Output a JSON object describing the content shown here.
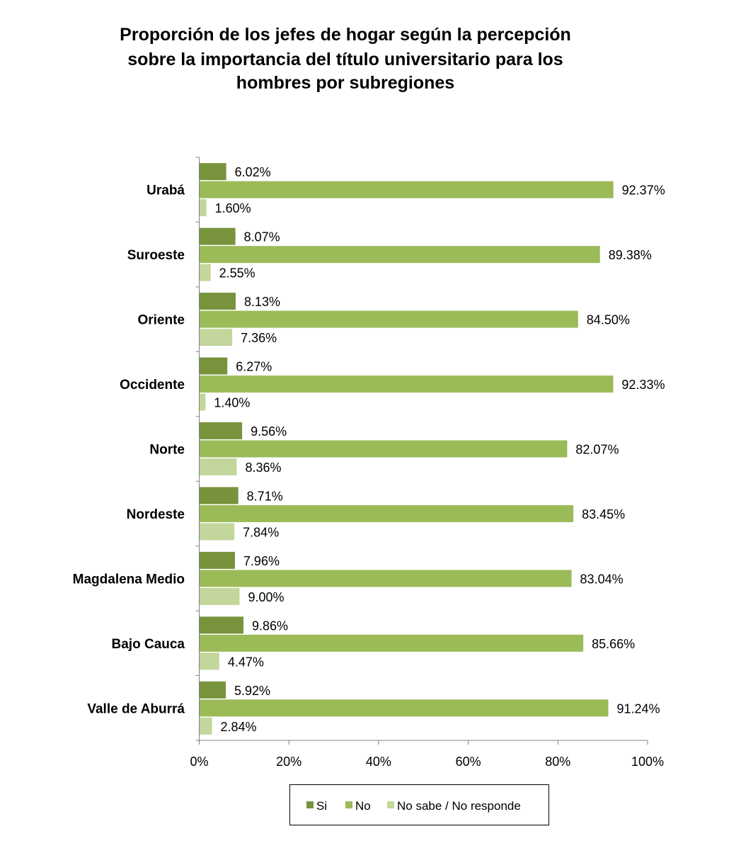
{
  "chart_data": {
    "type": "bar",
    "orientation": "horizontal",
    "stacked": false,
    "title_lines": [
      "Proporción de los jefes de hogar según la percepción",
      "sobre la importancia del título universitario para los",
      "hombres por subregiones"
    ],
    "categories": [
      "Urabá",
      "Suroeste",
      "Oriente",
      "Occidente",
      "Norte",
      "Nordeste",
      "Magdalena Medio",
      "Bajo Cauca",
      "Valle de Aburrá"
    ],
    "series": [
      {
        "name": "Si",
        "color": "#77933c",
        "values": [
          6.02,
          8.07,
          8.13,
          6.27,
          9.56,
          8.71,
          7.96,
          9.86,
          5.92
        ],
        "labels": [
          "6.02%",
          "8.07%",
          "8.13%",
          "6.27%",
          "9.56%",
          "8.71%",
          "7.96%",
          "9.86%",
          "5.92%"
        ]
      },
      {
        "name": "No",
        "color": "#9bbb59",
        "values": [
          92.37,
          89.38,
          84.5,
          92.33,
          82.07,
          83.45,
          83.04,
          85.66,
          91.24
        ],
        "labels": [
          "92.37%",
          "89.38%",
          "84.50%",
          "92.33%",
          "82.07%",
          "83.45%",
          "83.04%",
          "85.66%",
          "91.24%"
        ]
      },
      {
        "name": "No sabe / No responde",
        "color": "#c3d69b",
        "values": [
          1.6,
          2.55,
          7.36,
          1.4,
          8.36,
          7.84,
          9.0,
          4.47,
          2.84
        ],
        "labels": [
          "1.60%",
          "2.55%",
          "7.36%",
          "1.40%",
          "8.36%",
          "7.84%",
          "9.00%",
          "4.47%",
          "2.84%"
        ]
      }
    ],
    "xlim": [
      0,
      100
    ],
    "x_ticks": [
      "0%",
      "20%",
      "40%",
      "60%",
      "80%",
      "100%"
    ],
    "grid": false,
    "legend_position": "bottom"
  }
}
